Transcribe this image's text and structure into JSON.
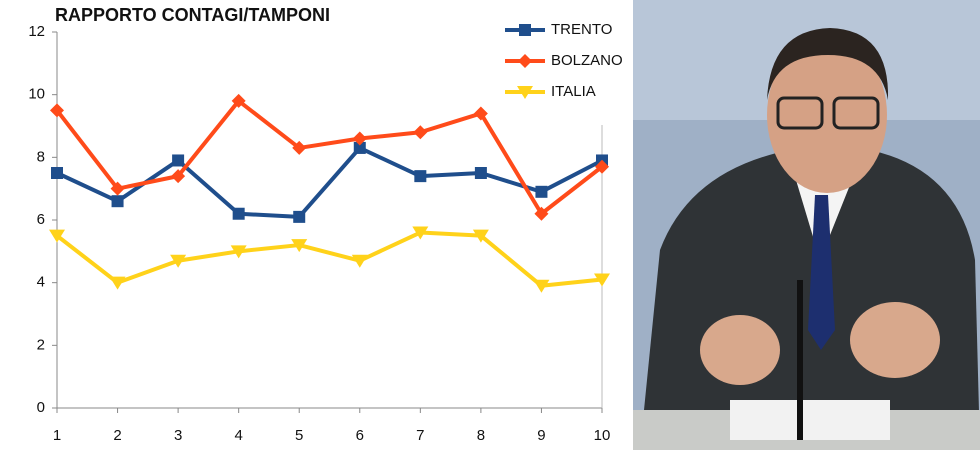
{
  "chart_data": {
    "type": "line",
    "title": "RAPPORTO CONTAGI/TAMPONI",
    "x": [
      1,
      2,
      3,
      4,
      5,
      6,
      7,
      8,
      9,
      10
    ],
    "xlim": [
      1,
      10
    ],
    "xticks": [
      1,
      2,
      3,
      4,
      5,
      6,
      7,
      8,
      9,
      10
    ],
    "ylim": [
      0,
      12
    ],
    "yticks": [
      0,
      2,
      4,
      6,
      8,
      10,
      12
    ],
    "grid": false,
    "legend": "upper right",
    "series": [
      {
        "name": "TRENTO",
        "color": "#1f4e8c",
        "marker": "square",
        "values": [
          7.5,
          6.6,
          7.9,
          6.2,
          6.1,
          8.3,
          7.4,
          7.5,
          6.9,
          7.9
        ]
      },
      {
        "name": "BOLZANO",
        "color": "#ff4b1a",
        "marker": "diamond",
        "values": [
          9.5,
          7.0,
          7.4,
          9.8,
          8.3,
          8.6,
          8.8,
          9.4,
          6.2,
          7.7
        ]
      },
      {
        "name": "ITALIA",
        "color": "#ffd21a",
        "marker": "triangle-down",
        "values": [
          5.5,
          4.0,
          4.7,
          5.0,
          5.2,
          4.7,
          5.6,
          5.5,
          3.9,
          4.1
        ]
      }
    ]
  }
}
